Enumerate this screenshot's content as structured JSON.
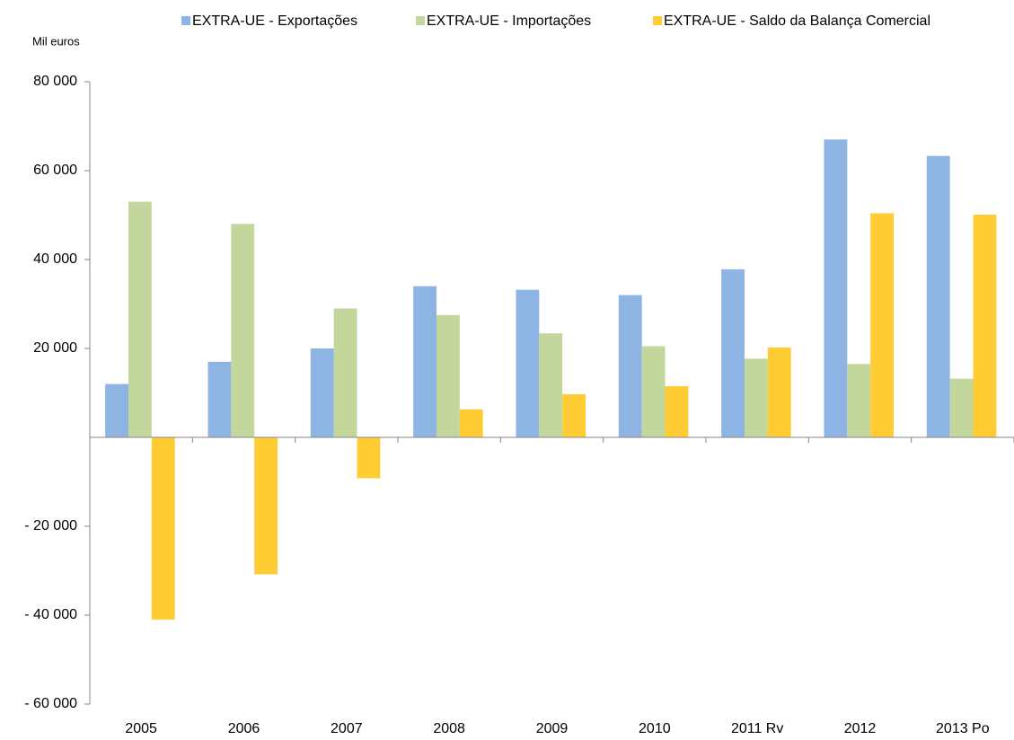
{
  "chart_data": {
    "type": "bar",
    "y_axis_label": "Mil euros",
    "categories": [
      "2005",
      "2006",
      "2007",
      "2008",
      "2009",
      "2010",
      "2011 Rv",
      "2012",
      "2013 Po"
    ],
    "series": [
      {
        "name": "EXTRA-UE - Exportações",
        "color": "#8eb4e3",
        "values": [
          12000,
          17000,
          20000,
          34000,
          33200,
          32000,
          37800,
          67000,
          63300
        ]
      },
      {
        "name": "EXTRA-UE - Importações",
        "color": "#c3d69b",
        "values": [
          53000,
          48000,
          29000,
          27500,
          23400,
          20500,
          17700,
          16500,
          13200
        ]
      },
      {
        "name": "EXTRA-UE - Saldo da Balança Comercial",
        "color": "#ffcc33",
        "values": [
          -41000,
          -30800,
          -9200,
          6300,
          9700,
          11500,
          20200,
          50400,
          50100
        ]
      }
    ],
    "ylim": [
      -60000,
      80000
    ],
    "yticks": [
      {
        "value": -60000,
        "label": "- 60 000"
      },
      {
        "value": -40000,
        "label": "- 40 000"
      },
      {
        "value": -20000,
        "label": "- 20 000"
      },
      {
        "value": 20000,
        "label": "20 000"
      },
      {
        "value": 40000,
        "label": "40 000"
      },
      {
        "value": 60000,
        "label": "60 000"
      },
      {
        "value": 80000,
        "label": "80 000"
      }
    ],
    "grid": false,
    "legend": "top"
  }
}
